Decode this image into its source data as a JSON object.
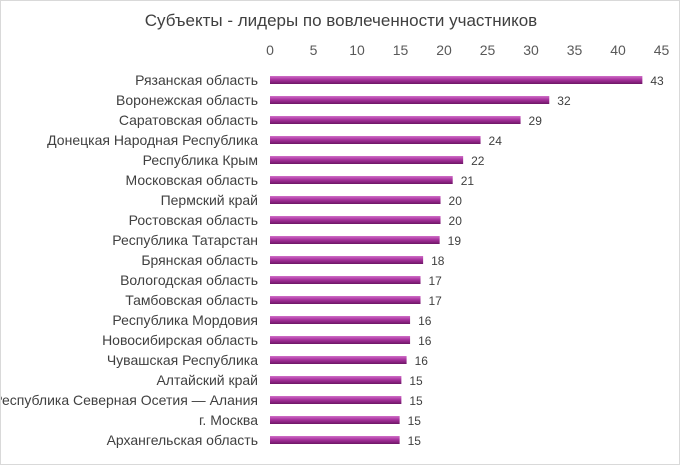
{
  "chart_data": {
    "type": "bar",
    "orientation": "horizontal",
    "title": "Субъекты - лидеры по вовлеченности участников",
    "xlabel": "",
    "ylabel": "",
    "xlim": [
      0,
      45
    ],
    "x_ticks": [
      0,
      5,
      10,
      15,
      20,
      25,
      30,
      35,
      40,
      45
    ],
    "x_axis_position": "top",
    "grid": false,
    "legend": "none",
    "categories": [
      "Рязанская область",
      "Воронежская область",
      "Саратовская область",
      "Донецкая Народная Республика",
      "Республика Крым",
      "Московская область",
      "Пермский край",
      "Ростовская область",
      "Республика Татарстан",
      "Брянская область",
      "Вологодская область",
      "Тамбовская область",
      "Республика Мордовия",
      "Новосибирская область",
      "Чувашская Республика",
      "Алтайский край",
      "Республика Северная Осетия — Алания",
      "г. Москва",
      "Архангельская область"
    ],
    "values": [
      43,
      32,
      29,
      24,
      22,
      21,
      20,
      20,
      19,
      18,
      17,
      17,
      16,
      16,
      16,
      15,
      15,
      15,
      15
    ],
    "bar_values": [
      42.8,
      32.1,
      28.8,
      24.2,
      22.2,
      21.0,
      19.6,
      19.6,
      19.5,
      17.6,
      17.3,
      17.3,
      16.1,
      16.1,
      15.7,
      15.1,
      15.1,
      14.9,
      14.9
    ],
    "colors": {
      "bar_light": "#d070c8",
      "bar_mid": "#a8329e",
      "bar_dark": "#6e1566",
      "text": "#404040",
      "tick_text": "#595959"
    }
  }
}
